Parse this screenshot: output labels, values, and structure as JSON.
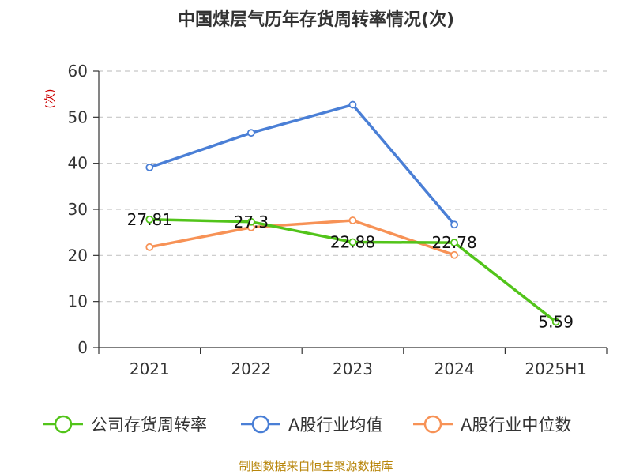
{
  "chart_data": {
    "type": "line",
    "title": "中国煤层气历年存货周转率情况(次)",
    "ylabel": "(次)",
    "xlabel": "",
    "categories": [
      "2021",
      "2022",
      "2023",
      "2024",
      "2025H1"
    ],
    "ylim": [
      0,
      60
    ],
    "yticks": [
      0,
      10,
      20,
      30,
      40,
      50,
      60
    ],
    "grid": "horizontal dashed",
    "legend_position": "bottom",
    "series": [
      {
        "name": "公司存货周转率",
        "color": "#52c41a",
        "values": [
          27.81,
          27.3,
          22.88,
          22.78,
          5.59
        ],
        "data_labels": [
          "27.81",
          "27.3",
          "22.88",
          "22.78",
          "5.59"
        ]
      },
      {
        "name": "A股行业均值",
        "color": "#4a7fd6",
        "values": [
          39.1,
          46.6,
          52.7,
          26.7,
          null
        ]
      },
      {
        "name": "A股行业中位数",
        "color": "#f79256",
        "values": [
          21.8,
          26.1,
          27.6,
          20.1,
          null
        ]
      }
    ]
  },
  "source_text": "制图数据来自恒生聚源数据库"
}
